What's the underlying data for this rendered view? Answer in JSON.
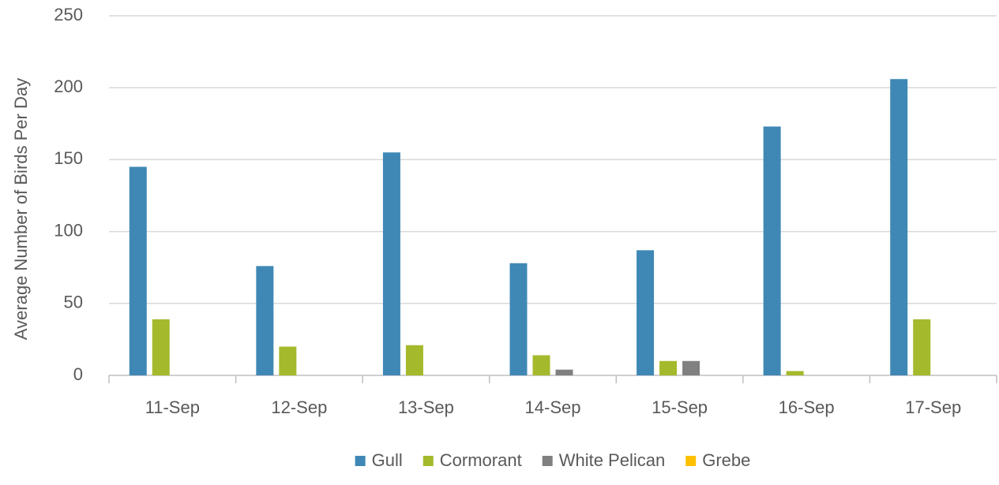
{
  "chart_data": {
    "type": "bar",
    "ylabel": "Average Number of Birds Per Day",
    "categories": [
      "11-Sep",
      "12-Sep",
      "13-Sep",
      "14-Sep",
      "15-Sep",
      "16-Sep",
      "17-Sep"
    ],
    "series": [
      {
        "name": "Gull",
        "color": "#3f88b5",
        "values": [
          145,
          76,
          155,
          78,
          87,
          173,
          206
        ]
      },
      {
        "name": "Cormorant",
        "color": "#a5b92c",
        "values": [
          39,
          20,
          21,
          14,
          10,
          3,
          39
        ]
      },
      {
        "name": "White Pelican",
        "color": "#808080",
        "values": [
          0,
          0,
          0,
          4,
          10,
          0,
          0
        ]
      },
      {
        "name": "Grebe",
        "color": "#ffc000",
        "values": [
          0,
          0,
          0,
          0,
          0,
          0,
          0
        ]
      }
    ],
    "ylim": [
      0,
      250
    ],
    "yticks": [
      0,
      50,
      100,
      150,
      200,
      250
    ],
    "grid": true,
    "legend": "bottom"
  }
}
